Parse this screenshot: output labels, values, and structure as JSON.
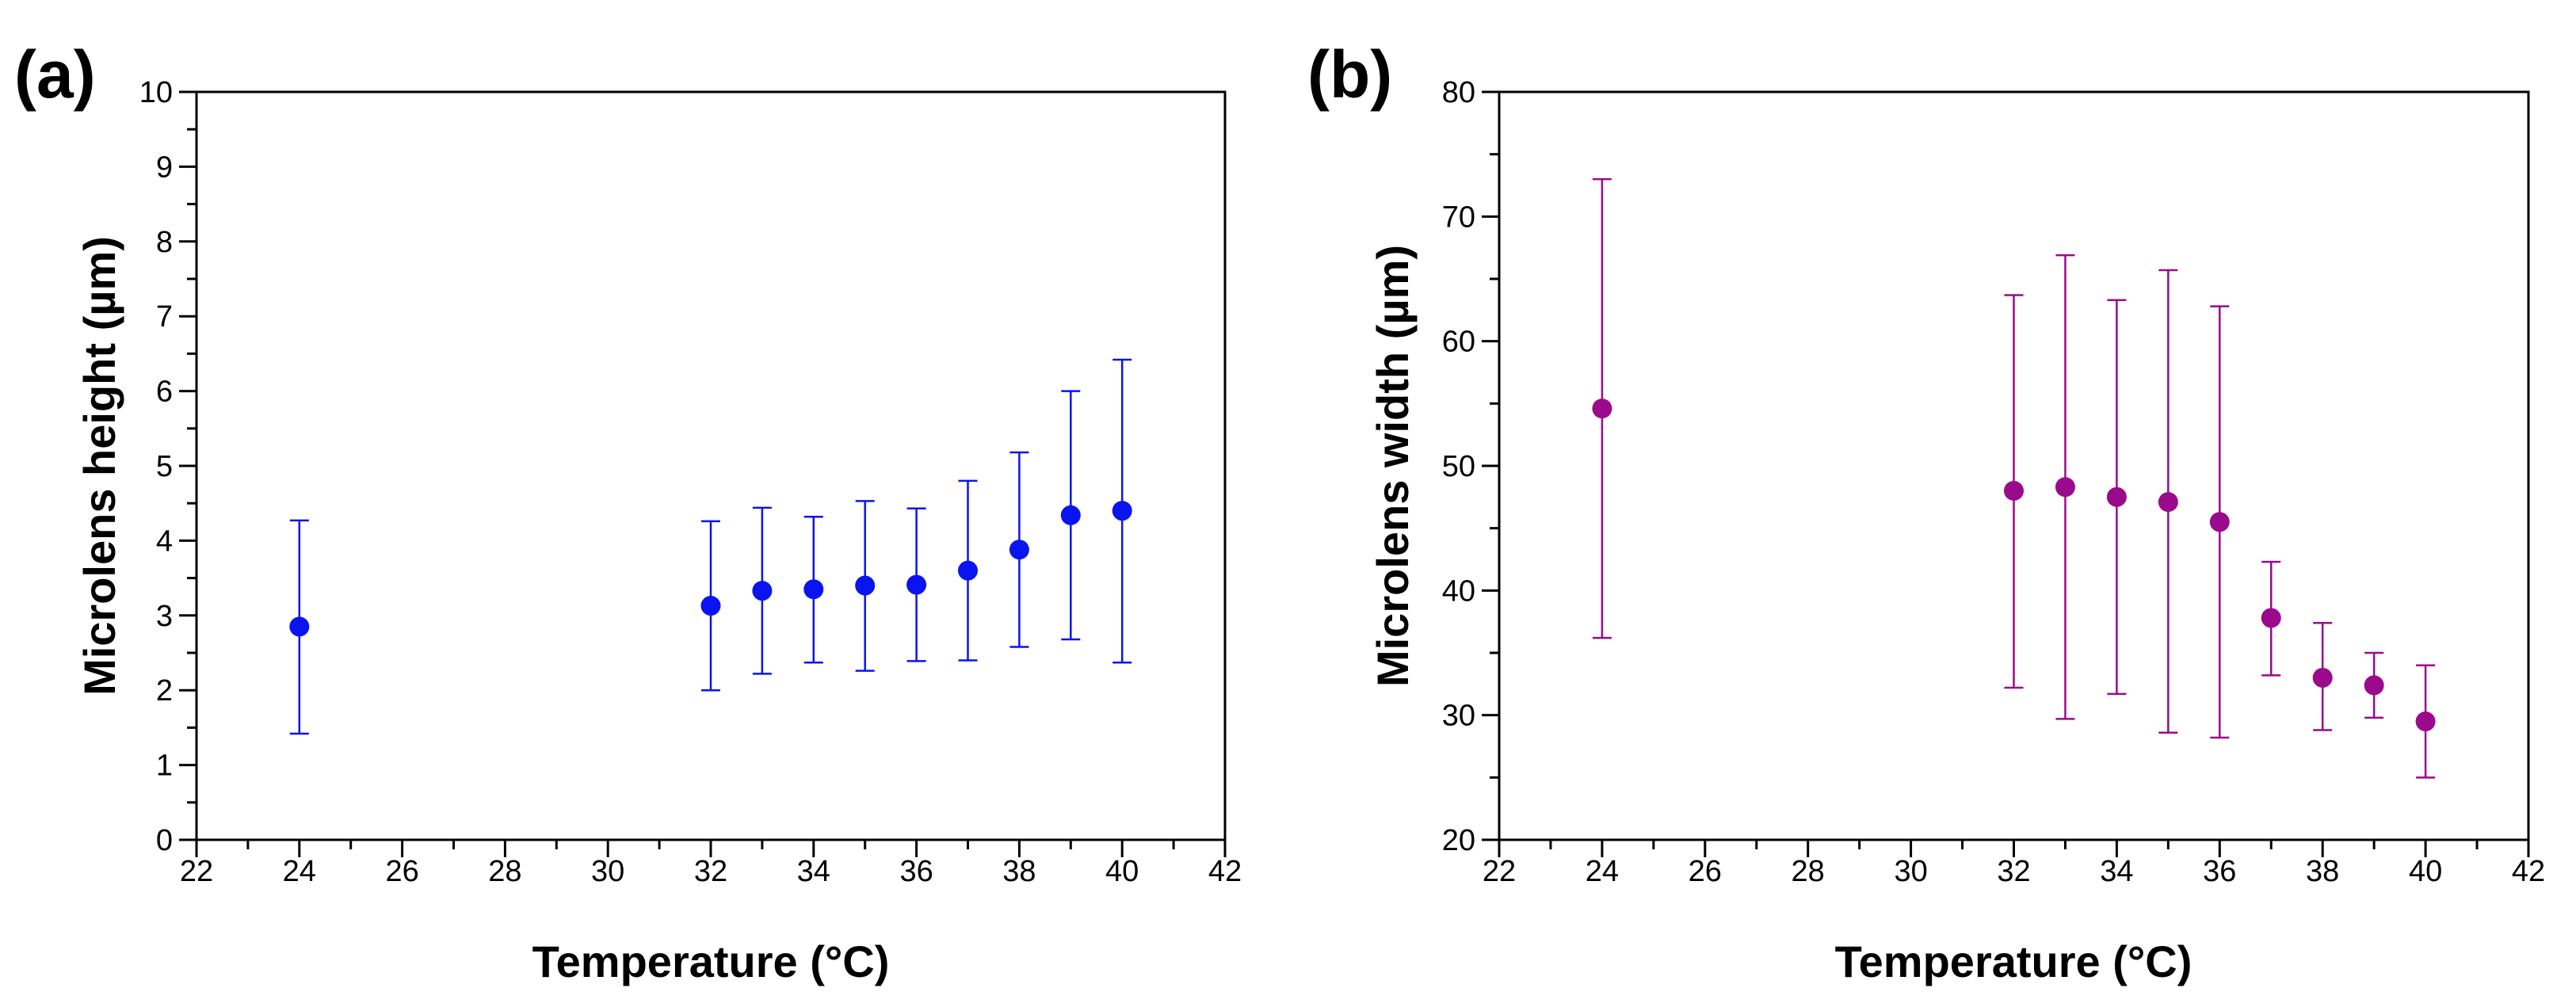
{
  "figure": {
    "panels": [
      {
        "label": "(a)"
      },
      {
        "label": "(b)"
      }
    ]
  },
  "chart_data": [
    {
      "type": "scatter",
      "panel": "(a)",
      "title": "",
      "xlabel": "Temperature (°C)",
      "ylabel": "Microlens height (µm)",
      "xlim": [
        22,
        42
      ],
      "ylim": [
        0,
        10
      ],
      "x_major_ticks": [
        22,
        24,
        26,
        28,
        30,
        32,
        34,
        36,
        38,
        40,
        42
      ],
      "x_minor_ticks": [
        23,
        25,
        27,
        29,
        31,
        33,
        35,
        37,
        39,
        41
      ],
      "y_major_ticks": [
        0,
        1,
        2,
        3,
        4,
        5,
        6,
        7,
        8,
        9,
        10
      ],
      "y_minor_ticks": [
        0.5,
        1.5,
        2.5,
        3.5,
        4.5,
        5.5,
        6.5,
        7.5,
        8.5,
        9.5
      ],
      "grid": false,
      "series": [
        {
          "name": "Microlens height",
          "color": "#0a14f0",
          "x": [
            24,
            32,
            33,
            34,
            35,
            36,
            37,
            38,
            39,
            40
          ],
          "y": [
            2.85,
            3.13,
            3.33,
            3.35,
            3.4,
            3.41,
            3.6,
            3.88,
            4.34,
            4.4
          ],
          "y_lower": [
            1.42,
            2.0,
            2.22,
            2.37,
            2.26,
            2.39,
            2.4,
            2.58,
            2.68,
            2.37
          ],
          "y_upper": [
            4.27,
            4.26,
            4.44,
            4.32,
            4.53,
            4.43,
            4.8,
            5.18,
            6.0,
            6.42
          ]
        }
      ]
    },
    {
      "type": "scatter",
      "panel": "(b)",
      "title": "",
      "xlabel": "Temperature (°C)",
      "ylabel": "Microlens width (µm)",
      "xlim": [
        22,
        42
      ],
      "ylim": [
        20,
        80
      ],
      "x_major_ticks": [
        22,
        24,
        26,
        28,
        30,
        32,
        34,
        36,
        38,
        40,
        42
      ],
      "x_minor_ticks": [
        23,
        25,
        27,
        29,
        31,
        33,
        35,
        37,
        39,
        41
      ],
      "y_major_ticks": [
        20,
        30,
        40,
        50,
        60,
        70,
        80
      ],
      "y_minor_ticks": [
        25,
        35,
        45,
        55,
        65,
        75
      ],
      "grid": false,
      "series": [
        {
          "name": "Microlens width",
          "color": "#9b0a8c",
          "x": [
            24,
            32,
            33,
            34,
            35,
            36,
            37,
            38,
            39,
            40
          ],
          "y": [
            54.6,
            48.0,
            48.3,
            47.5,
            47.1,
            45.5,
            37.8,
            33.0,
            32.4,
            29.5
          ],
          "y_lower": [
            36.2,
            32.2,
            29.7,
            31.7,
            28.6,
            28.2,
            33.2,
            28.8,
            29.8,
            25.0
          ],
          "y_upper": [
            73.0,
            63.7,
            66.9,
            63.3,
            65.7,
            62.8,
            42.3,
            37.4,
            35.0,
            34.0
          ]
        }
      ]
    }
  ]
}
